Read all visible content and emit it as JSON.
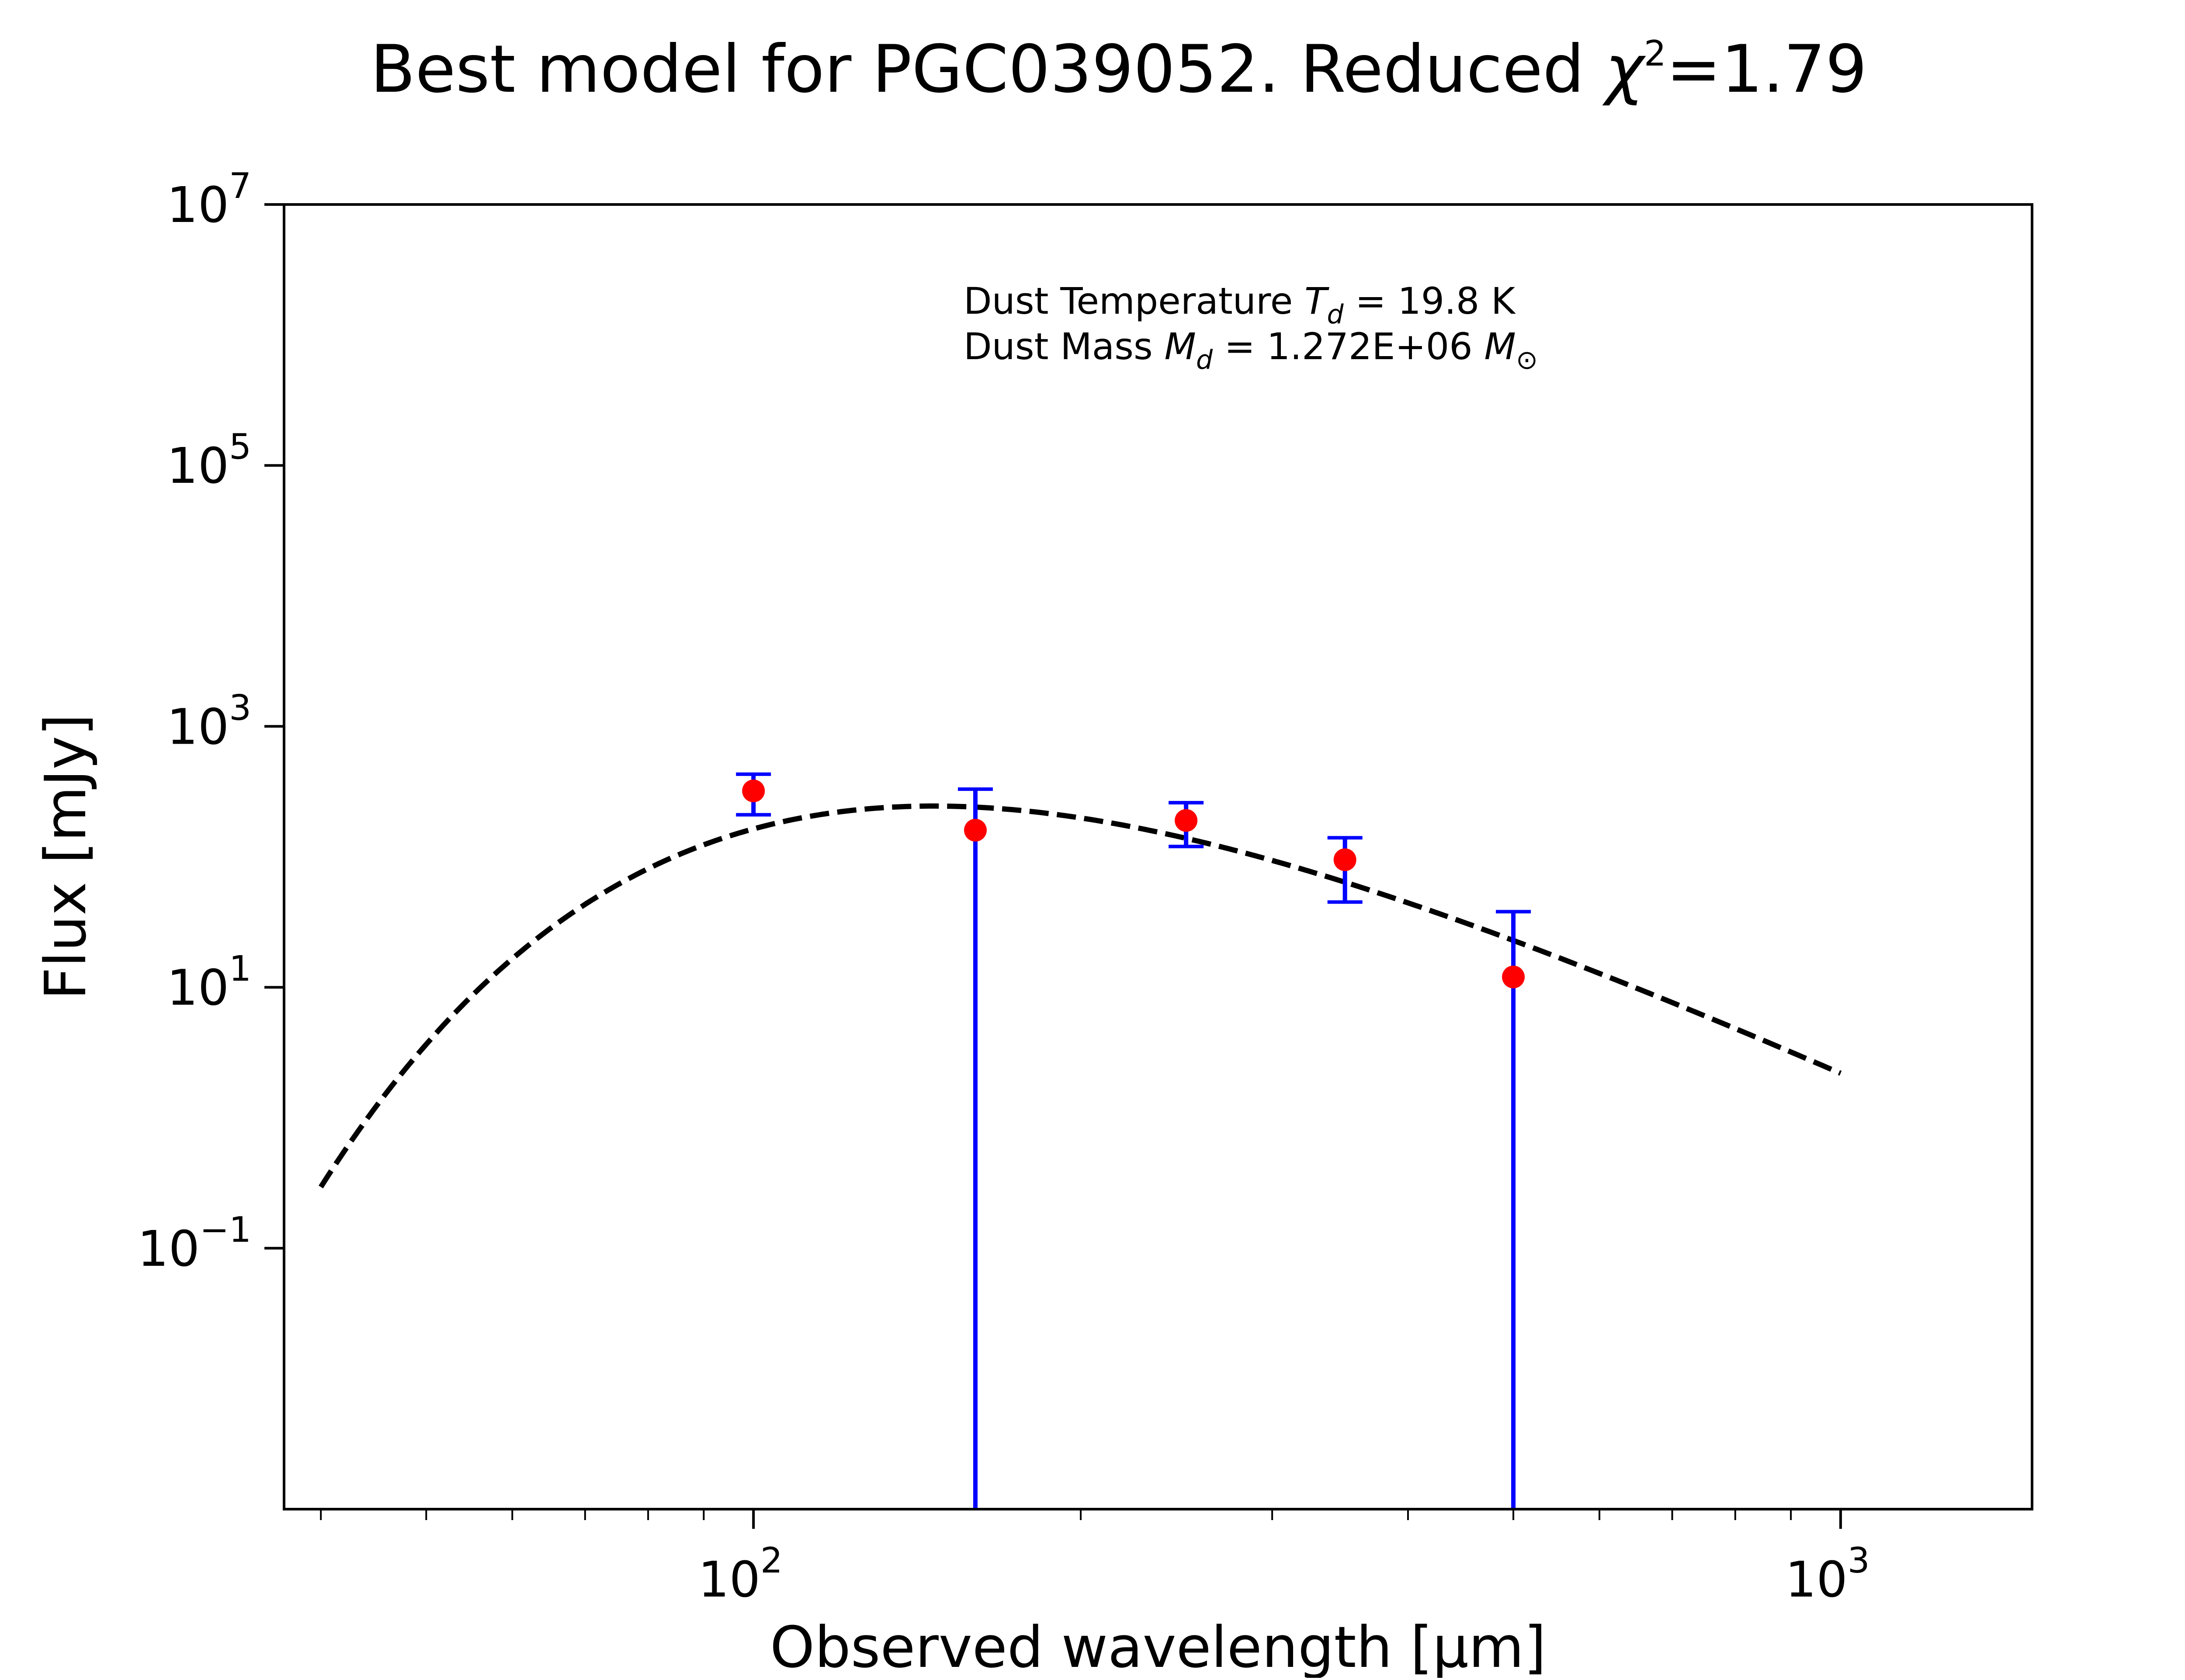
{
  "chart_data": {
    "type": "scatter",
    "title": {
      "prefix": "Best model for PGC039052. Reduced ",
      "chi_symbol": "χ",
      "chi_exponent": "2",
      "suffix": "=1.79"
    },
    "xlabel": "Observed wavelength [μm]",
    "ylabel": "Flux [mJy]",
    "x_scale": "log",
    "y_scale": "log",
    "xlim": [
      37,
      1500
    ],
    "ylim": [
      0.001,
      10000000
    ],
    "x_ticks": [
      {
        "value": 100,
        "base": "10",
        "exp": "2"
      },
      {
        "value": 1000,
        "base": "10",
        "exp": "3"
      }
    ],
    "y_ticks": [
      {
        "value": 10000000,
        "base": "10",
        "exp": "7"
      },
      {
        "value": 100000,
        "base": "10",
        "exp": "5"
      },
      {
        "value": 1000,
        "base": "10",
        "exp": "3"
      },
      {
        "value": 10,
        "base": "10",
        "exp": "1"
      },
      {
        "value": 0.1,
        "base": "10",
        "exp": "−1"
      }
    ],
    "grid": false,
    "annotation": {
      "line1_prefix": "Dust Temperature ",
      "line1_symbol": "T",
      "line1_sub": "d",
      "line1_value": " = 19.8 K",
      "line2_prefix": "Dust Mass ",
      "line2_symbol": "M",
      "line2_sub": "d",
      "line2_value": " = 1.272E+06 ",
      "line2_unit": "M",
      "line2_unit_sub": "⊙"
    },
    "series": [
      {
        "type": "errorbar",
        "color": "#ff0000",
        "ecolor": "#0000ff",
        "points": [
          {
            "x": 100,
            "y": 320,
            "ylo": 210,
            "yhi": 430
          },
          {
            "x": 160,
            "y": 160,
            "ylo": 0.001,
            "yhi": 330
          },
          {
            "x": 250,
            "y": 190,
            "ylo": 120,
            "yhi": 260
          },
          {
            "x": 350,
            "y": 95,
            "ylo": 45,
            "yhi": 140
          },
          {
            "x": 500,
            "y": 12,
            "ylo": 0.001,
            "yhi": 38
          }
        ]
      },
      {
        "type": "line",
        "style": "dashed",
        "color": "#000000",
        "model": "modified-blackbody",
        "T_dust_K": 19.8,
        "beta": 2,
        "peak_y": 245,
        "x_range": [
          40,
          1000
        ]
      }
    ]
  }
}
